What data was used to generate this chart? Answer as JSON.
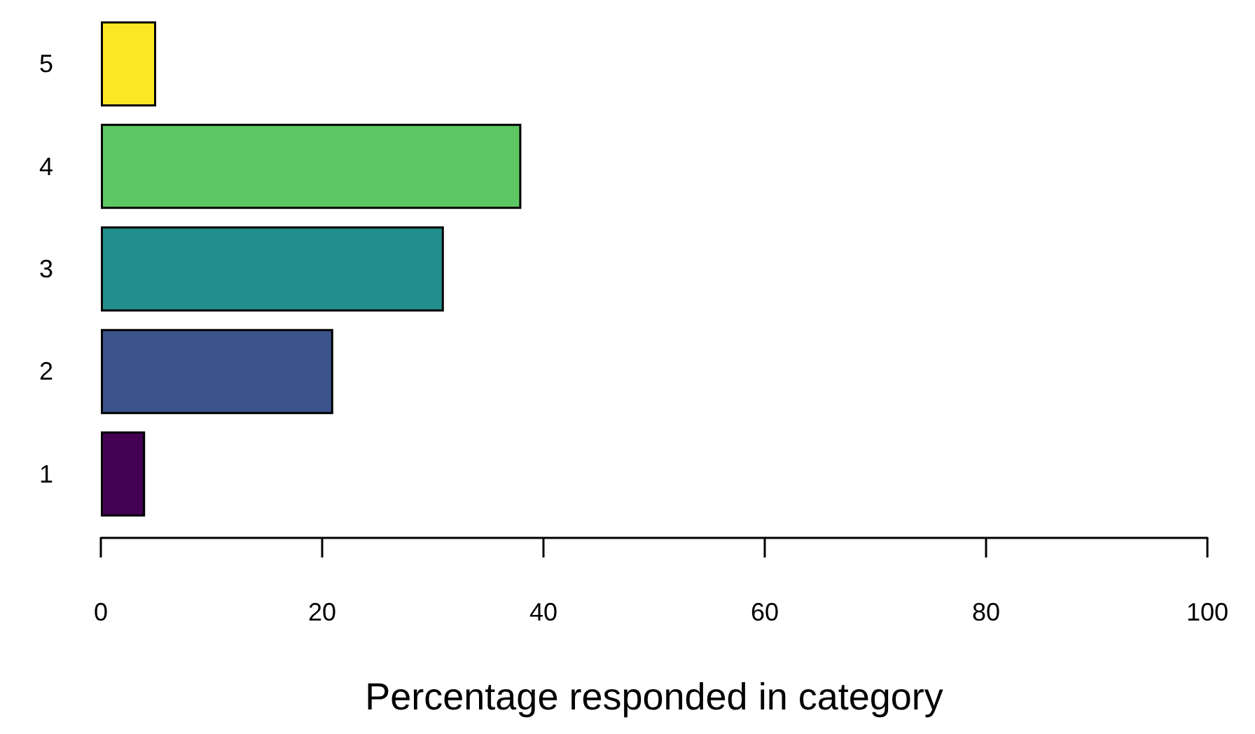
{
  "chart_data": {
    "type": "bar",
    "orientation": "horizontal",
    "xlabel": "Percentage responded in category",
    "categories": [
      "5",
      "4",
      "3",
      "2",
      "1"
    ],
    "values": [
      5,
      38,
      31,
      21,
      4
    ],
    "colors": [
      "#fde725",
      "#5dc863",
      "#21908c",
      "#3b528b",
      "#440154"
    ],
    "xlim": [
      0,
      100
    ],
    "xticks": [
      0,
      20,
      40,
      60,
      80,
      100
    ],
    "grid": false
  }
}
